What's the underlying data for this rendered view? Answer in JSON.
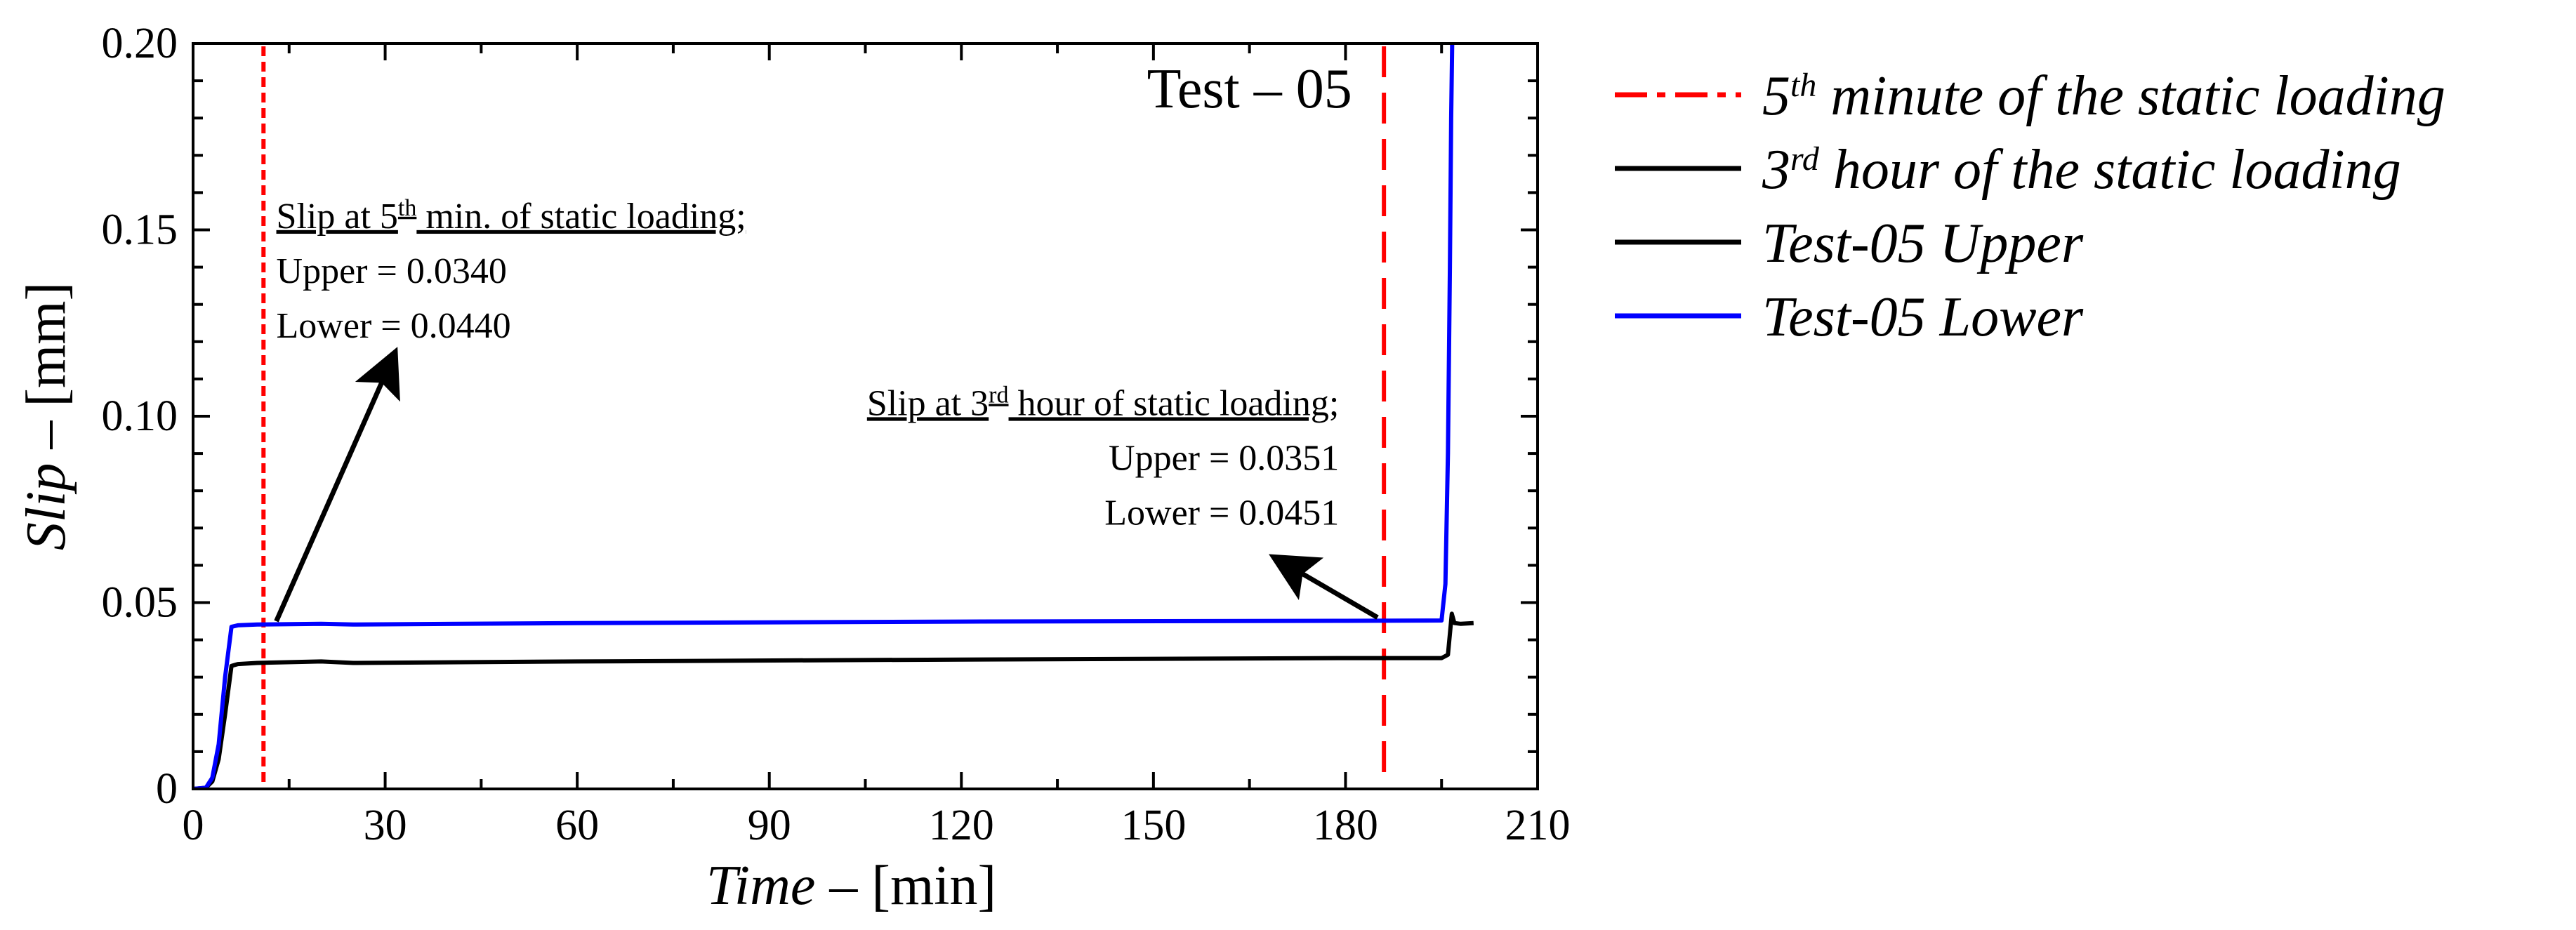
{
  "chart_data": {
    "type": "line",
    "xlabel": {
      "italic": "Time",
      "rest": " – [min]"
    },
    "ylabel": {
      "italic": "Slip",
      "rest": " – [mm]"
    },
    "xlim": [
      0,
      210
    ],
    "ylim": [
      0,
      0.2
    ],
    "xticks": [
      0,
      30,
      60,
      90,
      120,
      150,
      180,
      210
    ],
    "yticks": [
      0,
      0.05,
      0.1,
      0.15,
      0.2
    ],
    "ytick_labels": [
      "0",
      "0.05",
      "0.10",
      "0.15",
      "0.20"
    ],
    "test_label": "Test – 05",
    "grid": false,
    "legend_position": "outside-right",
    "series": [
      {
        "key": "upper",
        "name": "Test-05 Upper",
        "color": "#000000",
        "x": [
          0,
          2,
          3,
          4,
          5,
          6,
          7,
          10,
          20,
          25,
          60,
          120,
          180,
          195,
          196,
          196.6,
          197,
          198,
          200
        ],
        "y": [
          0,
          0.0003,
          0.002,
          0.008,
          0.02,
          0.033,
          0.0335,
          0.0338,
          0.0342,
          0.0338,
          0.0342,
          0.0347,
          0.0351,
          0.0351,
          0.036,
          0.047,
          0.0445,
          0.0443,
          0.0445
        ]
      },
      {
        "key": "lower",
        "name": "Test-05 Lower",
        "color": "#0000ff",
        "x": [
          0,
          2,
          3,
          4,
          5,
          6,
          7,
          10,
          20,
          25,
          60,
          120,
          180,
          195,
          195.6,
          196,
          196.3,
          196.5,
          196.7
        ],
        "y": [
          0,
          0.0003,
          0.003,
          0.012,
          0.03,
          0.0435,
          0.0439,
          0.0441,
          0.0443,
          0.0441,
          0.0445,
          0.0449,
          0.0451,
          0.0452,
          0.055,
          0.09,
          0.14,
          0.18,
          0.205
        ]
      }
    ],
    "vlines": [
      {
        "key": "min5",
        "x": 11,
        "color": "#ff0000",
        "style": "dense-dash",
        "legend": {
          "main": "5",
          "sup": "th",
          "rest": " minute of the static loading"
        }
      },
      {
        "key": "hour3",
        "x": 186,
        "color": "#ff0000",
        "style": "long-dash",
        "legend": {
          "main": "3",
          "sup": "rd",
          "rest": " hour of the static loading"
        }
      }
    ],
    "annotations": [
      {
        "key": "min5",
        "heading": {
          "a": "Slip at 5",
          "sup": "th",
          "b": " min. of static loading;"
        },
        "upper": "Upper = 0.0340",
        "lower": "Lower = 0.0440",
        "align": "start",
        "text_x": 13,
        "text_y": 0.1505,
        "arrow_from": [
          13,
          0.045
        ],
        "arrow_to": [
          31,
          0.115
        ]
      },
      {
        "key": "hour3",
        "heading": {
          "a": "Slip at 3",
          "sup": "rd",
          "b": " hour of static loading;"
        },
        "upper": "Upper = 0.0351",
        "lower": "Lower = 0.0451",
        "align": "end",
        "text_x": 179,
        "text_y": 0.1003,
        "arrow_from": [
          185,
          0.046
        ],
        "arrow_to": [
          170,
          0.061
        ]
      }
    ]
  }
}
